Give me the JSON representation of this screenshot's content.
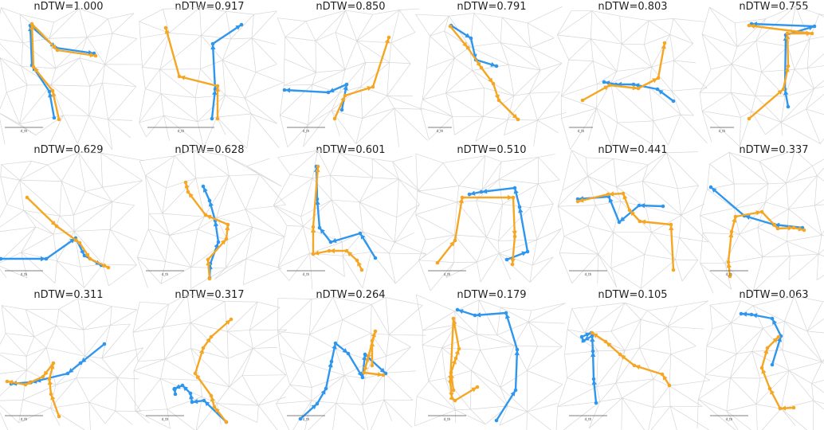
{
  "figure": {
    "scale_label": "d_th",
    "colors": {
      "reference_path": "#2f96ee",
      "predicted_path": "#f5a623",
      "navgraph": "#d6d6d6",
      "scale_bar": "#555555"
    }
  },
  "panels": [
    {
      "title": "nDTW=1.000"
    },
    {
      "title": "nDTW=0.917"
    },
    {
      "title": "nDTW=0.850"
    },
    {
      "title": "nDTW=0.791"
    },
    {
      "title": "nDTW=0.803"
    },
    {
      "title": "nDTW=0.755"
    },
    {
      "title": "nDTW=0.629"
    },
    {
      "title": "nDTW=0.628"
    },
    {
      "title": "nDTW=0.601"
    },
    {
      "title": "nDTW=0.510"
    },
    {
      "title": "nDTW=0.441"
    },
    {
      "title": "nDTW=0.337"
    },
    {
      "title": "nDTW=0.311"
    },
    {
      "title": "nDTW=0.317"
    },
    {
      "title": "nDTW=0.264"
    },
    {
      "title": "nDTW=0.179"
    },
    {
      "title": "nDTW=0.105"
    },
    {
      "title": "nDTW=0.063"
    }
  ]
}
